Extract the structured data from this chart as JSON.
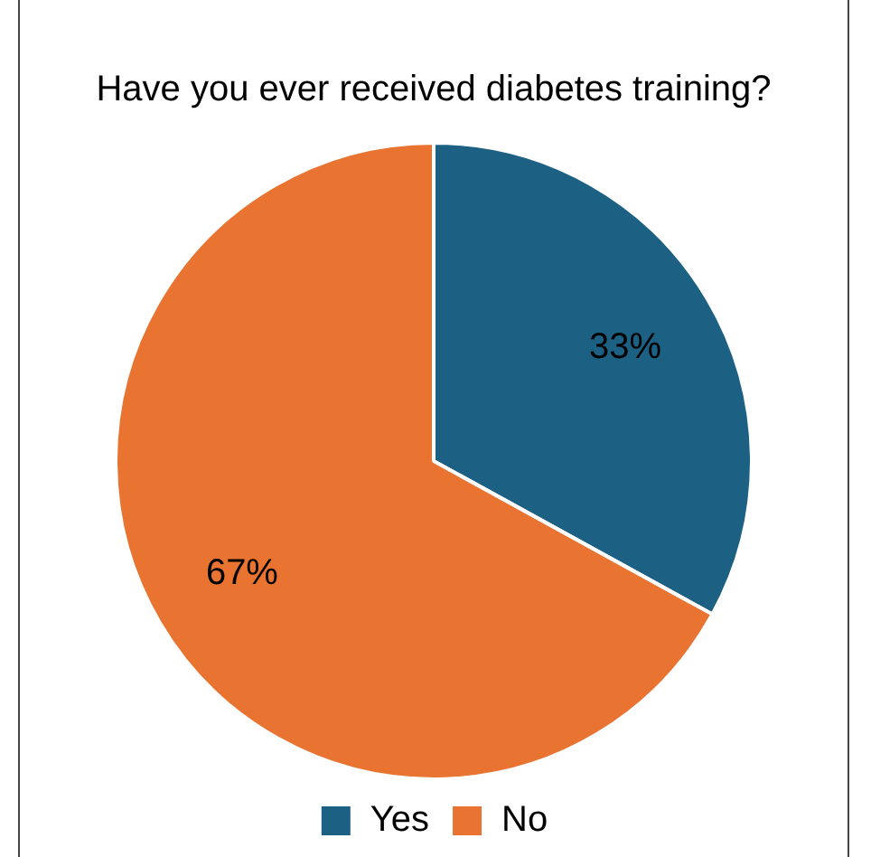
{
  "chart_data": {
    "type": "pie",
    "title": "Have you ever received diabetes training?",
    "categories": [
      "Yes",
      "No"
    ],
    "values": [
      33,
      67
    ],
    "colors": [
      "#1c6084",
      "#e97331"
    ],
    "value_labels": [
      "33%",
      "67%"
    ],
    "legend": "bottom"
  }
}
